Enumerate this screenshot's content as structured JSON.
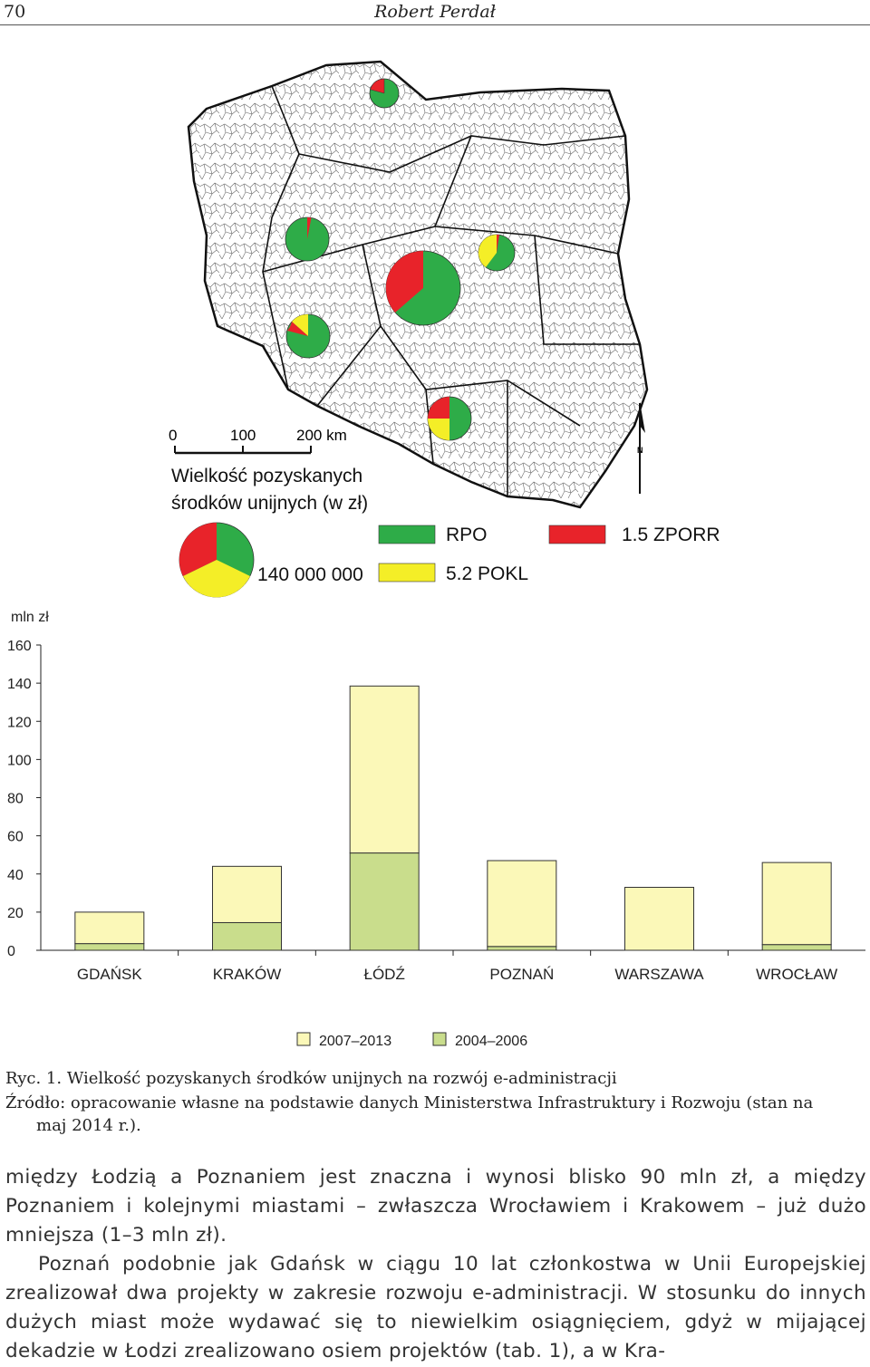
{
  "header": {
    "page_number": "70",
    "author": "Robert Perdał"
  },
  "map": {
    "scale_ticks": [
      "0",
      "100",
      "200 km"
    ],
    "legend_title_line1": "Wielkość pozyskanych",
    "legend_title_line2": "środków unijnych (w zł)",
    "legend_value": "140 000 000",
    "legend_items": [
      {
        "label": "RPO",
        "color": "#2eac48"
      },
      {
        "label": "1.5 ZPORR",
        "color": "#e8232a"
      },
      {
        "label": "5.2 POKL",
        "color": "#f4ee27"
      }
    ],
    "north_label": "N"
  },
  "chart_data": {
    "type": "bar",
    "stacked": true,
    "ylabel": "mln zł",
    "ylim": [
      0,
      160
    ],
    "yticks": [
      0,
      20,
      40,
      60,
      80,
      100,
      120,
      140,
      160
    ],
    "grid": false,
    "categories": [
      "GDAŃSK",
      "KRAKÓW",
      "ŁÓDŹ",
      "POZNAŃ",
      "WARSZAWA",
      "WROCŁAW"
    ],
    "series": [
      {
        "name": "2004–2006",
        "color": "#c9dd8c",
        "values": [
          3.5,
          14.5,
          51,
          2,
          0,
          3
        ]
      },
      {
        "name": "2007–2013",
        "color": "#fbf8b8",
        "values": [
          16.5,
          29.5,
          87.5,
          45,
          33,
          43
        ]
      }
    ],
    "legend_position": "bottom",
    "legend_order": [
      "2007–2013",
      "2004–2006"
    ]
  },
  "caption": {
    "title": "Ryc. 1. Wielkość pozyskanych środków unijnych na rozwój e-administracji",
    "source_line1": "Źródło: opracowanie własne na podstawie danych Ministerstwa Infrastruktury i Rozwoju (stan na",
    "source_line2": "maj 2014 r.)."
  },
  "body": {
    "p1": "między Łodzią a Poznaniem jest znaczna i wynosi blisko 90 mln zł, a między Poznaniem i kolejnymi miastami – zwłaszcza Wrocławiem i Krakowem – już dużo mniejsza (1–3 mln zł).",
    "p2": "Poznań podobnie jak Gdańsk w ciągu 10 lat członkostwa w Unii Europejskiej zrealizował dwa projekty w zakresie rozwoju e-administracji. W stosunku do innych dużych miast może wydawać się to niewielkim osiągnięciem, gdyż w mijającej dekadzie w Łodzi zrealizowano osiem projektów (tab. 1), a w Kra-"
  }
}
